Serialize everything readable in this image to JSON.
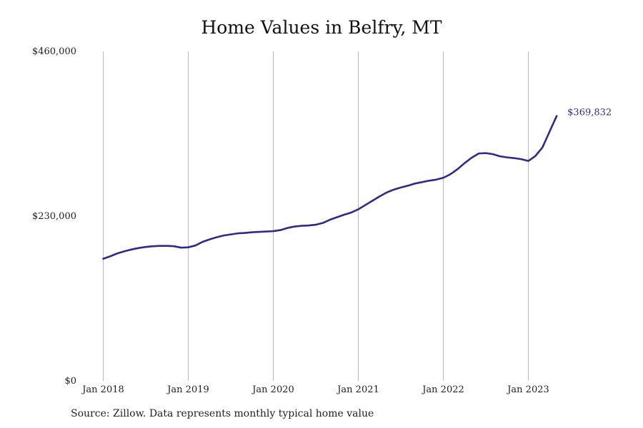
{
  "colors": {
    "line": "#2e2b88",
    "grid": "#b8b8b8",
    "text": "#222222"
  },
  "source_note": "Source: Zillow. Data represents monthly typical home value",
  "chart_data": {
    "type": "line",
    "title": "Home Values in Belfry, MT",
    "xlabel": "",
    "ylabel": "",
    "x_ticks": [
      "Jan 2018",
      "Jan 2019",
      "Jan 2020",
      "Jan 2021",
      "Jan 2022",
      "Jan 2023"
    ],
    "y_ticks": [
      "$0",
      "$230,000",
      "$460,000"
    ],
    "y_tick_values": [
      0,
      230000,
      460000
    ],
    "ylim": [
      0,
      460000
    ],
    "x_range": [
      "2018-01",
      "2023-05"
    ],
    "grid": "vertical lines at each January",
    "legend": "none",
    "end_label": "$369,832",
    "series": [
      {
        "x": [
          "2018-01",
          "2018-02",
          "2018-03",
          "2018-04",
          "2018-05",
          "2018-06",
          "2018-07",
          "2018-08",
          "2018-09",
          "2018-10",
          "2018-11",
          "2018-12",
          "2019-01",
          "2019-02",
          "2019-03",
          "2019-04",
          "2019-05",
          "2019-06",
          "2019-07",
          "2019-08",
          "2019-09",
          "2019-10",
          "2019-11",
          "2019-12",
          "2020-01",
          "2020-02",
          "2020-03",
          "2020-04",
          "2020-05",
          "2020-06",
          "2020-07",
          "2020-08",
          "2020-09",
          "2020-10",
          "2020-11",
          "2020-12",
          "2021-01",
          "2021-02",
          "2021-03",
          "2021-04",
          "2021-05",
          "2021-06",
          "2021-07",
          "2021-08",
          "2021-09",
          "2021-10",
          "2021-11",
          "2021-12",
          "2022-01",
          "2022-02",
          "2022-03",
          "2022-04",
          "2022-05",
          "2022-06",
          "2022-07",
          "2022-08",
          "2022-09",
          "2022-10",
          "2022-11",
          "2022-12",
          "2023-01",
          "2023-02",
          "2023-03",
          "2023-04",
          "2023-05"
        ],
        "values": [
          170500,
          174000,
          178000,
          181000,
          183500,
          185500,
          187000,
          188000,
          188500,
          188500,
          188000,
          186000,
          186500,
          189000,
          194000,
          197500,
          200500,
          203000,
          204500,
          206000,
          206500,
          207500,
          208000,
          208500,
          209000,
          210500,
          213500,
          215500,
          216500,
          217000,
          218000,
          220500,
          225000,
          228500,
          232000,
          235000,
          239500,
          245500,
          251500,
          257500,
          263000,
          267000,
          270000,
          272500,
          275500,
          277500,
          279500,
          281000,
          283500,
          288500,
          295500,
          304000,
          311500,
          317500,
          318000,
          316500,
          313500,
          312000,
          311000,
          309500,
          307000,
          314000,
          326000,
          348000,
          369832
        ]
      }
    ]
  }
}
